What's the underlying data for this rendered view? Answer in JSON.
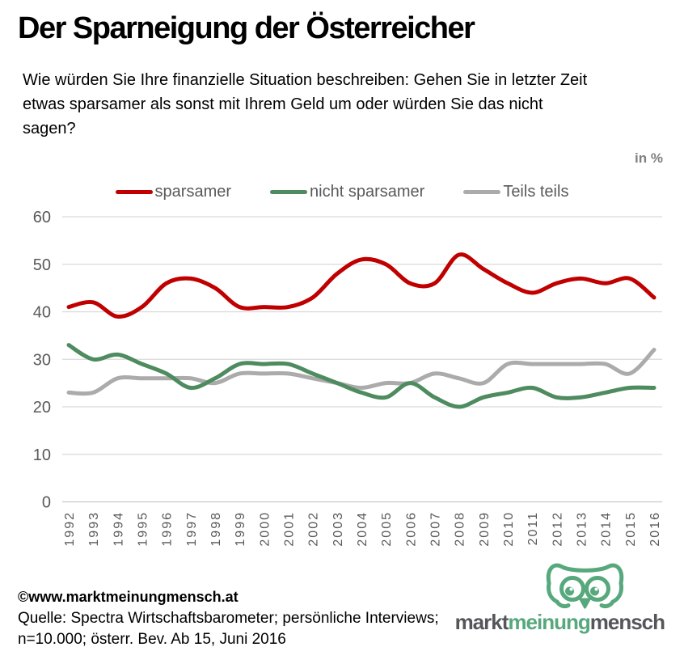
{
  "header": {
    "title": "Der Sparneigung der Österreicher",
    "subtitle": "Wie würden Sie Ihre finanzielle Situation beschreiben: Gehen Sie in letzter Zeit\netwas sparsamer als sonst mit Ihrem Geld um oder würden Sie das nicht\nsagen?",
    "unit_label": "in %"
  },
  "legend": {
    "items": [
      {
        "label": "sparsamer",
        "color": "#c00000"
      },
      {
        "label": "nicht sparsamer",
        "color": "#4e8b5f"
      },
      {
        "label": "Teils teils",
        "color": "#ababab"
      }
    ]
  },
  "chart_data": {
    "type": "line",
    "title": "Der Sparneigung der Österreicher",
    "x": [
      "1992",
      "1993",
      "1994",
      "1995",
      "1996",
      "1997",
      "1998",
      "1999",
      "2000",
      "2001",
      "2002",
      "2003",
      "2004",
      "2005",
      "2006",
      "2007",
      "2008",
      "2009",
      "2010",
      "2011",
      "2012",
      "2013",
      "2014",
      "2015",
      "2016"
    ],
    "series": [
      {
        "name": "sparsamer",
        "color": "#c00000",
        "values": [
          41,
          42,
          39,
          41,
          46,
          47,
          45,
          41,
          41,
          41,
          43,
          48,
          51,
          50,
          46,
          46,
          52,
          49,
          46,
          44,
          46,
          47,
          46,
          47,
          43
        ]
      },
      {
        "name": "nicht sparsamer",
        "color": "#4e8b5f",
        "values": [
          33,
          30,
          31,
          29,
          27,
          24,
          26,
          29,
          29,
          29,
          27,
          25,
          23,
          22,
          25,
          22,
          20,
          22,
          23,
          24,
          22,
          22,
          23,
          24,
          24
        ]
      },
      {
        "name": "Teils teils",
        "color": "#ababab",
        "values": [
          23,
          23,
          26,
          26,
          26,
          26,
          25,
          27,
          27,
          27,
          26,
          25,
          24,
          25,
          25,
          27,
          26,
          25,
          29,
          29,
          29,
          29,
          29,
          27,
          32
        ]
      }
    ],
    "ylabel": "in %",
    "xlabel": "",
    "ylim": [
      0,
      60
    ],
    "yticks": [
      0,
      10,
      20,
      30,
      40,
      50,
      60
    ],
    "grid": true,
    "smoothing": true,
    "legend_position": "top"
  },
  "footer": {
    "copyright": "©www.marktmeinungmensch.at",
    "source_line1": "Quelle: Spectra Wirtschaftsbarometer; persönliche Interviews;",
    "source_line2": "n=10.000; österr. Bev. Ab 15, Juni 2016",
    "logo": {
      "word1": "markt",
      "word2": "meinung",
      "word3": "mensch",
      "green": "#57a87c",
      "gray": "#55565a"
    }
  }
}
